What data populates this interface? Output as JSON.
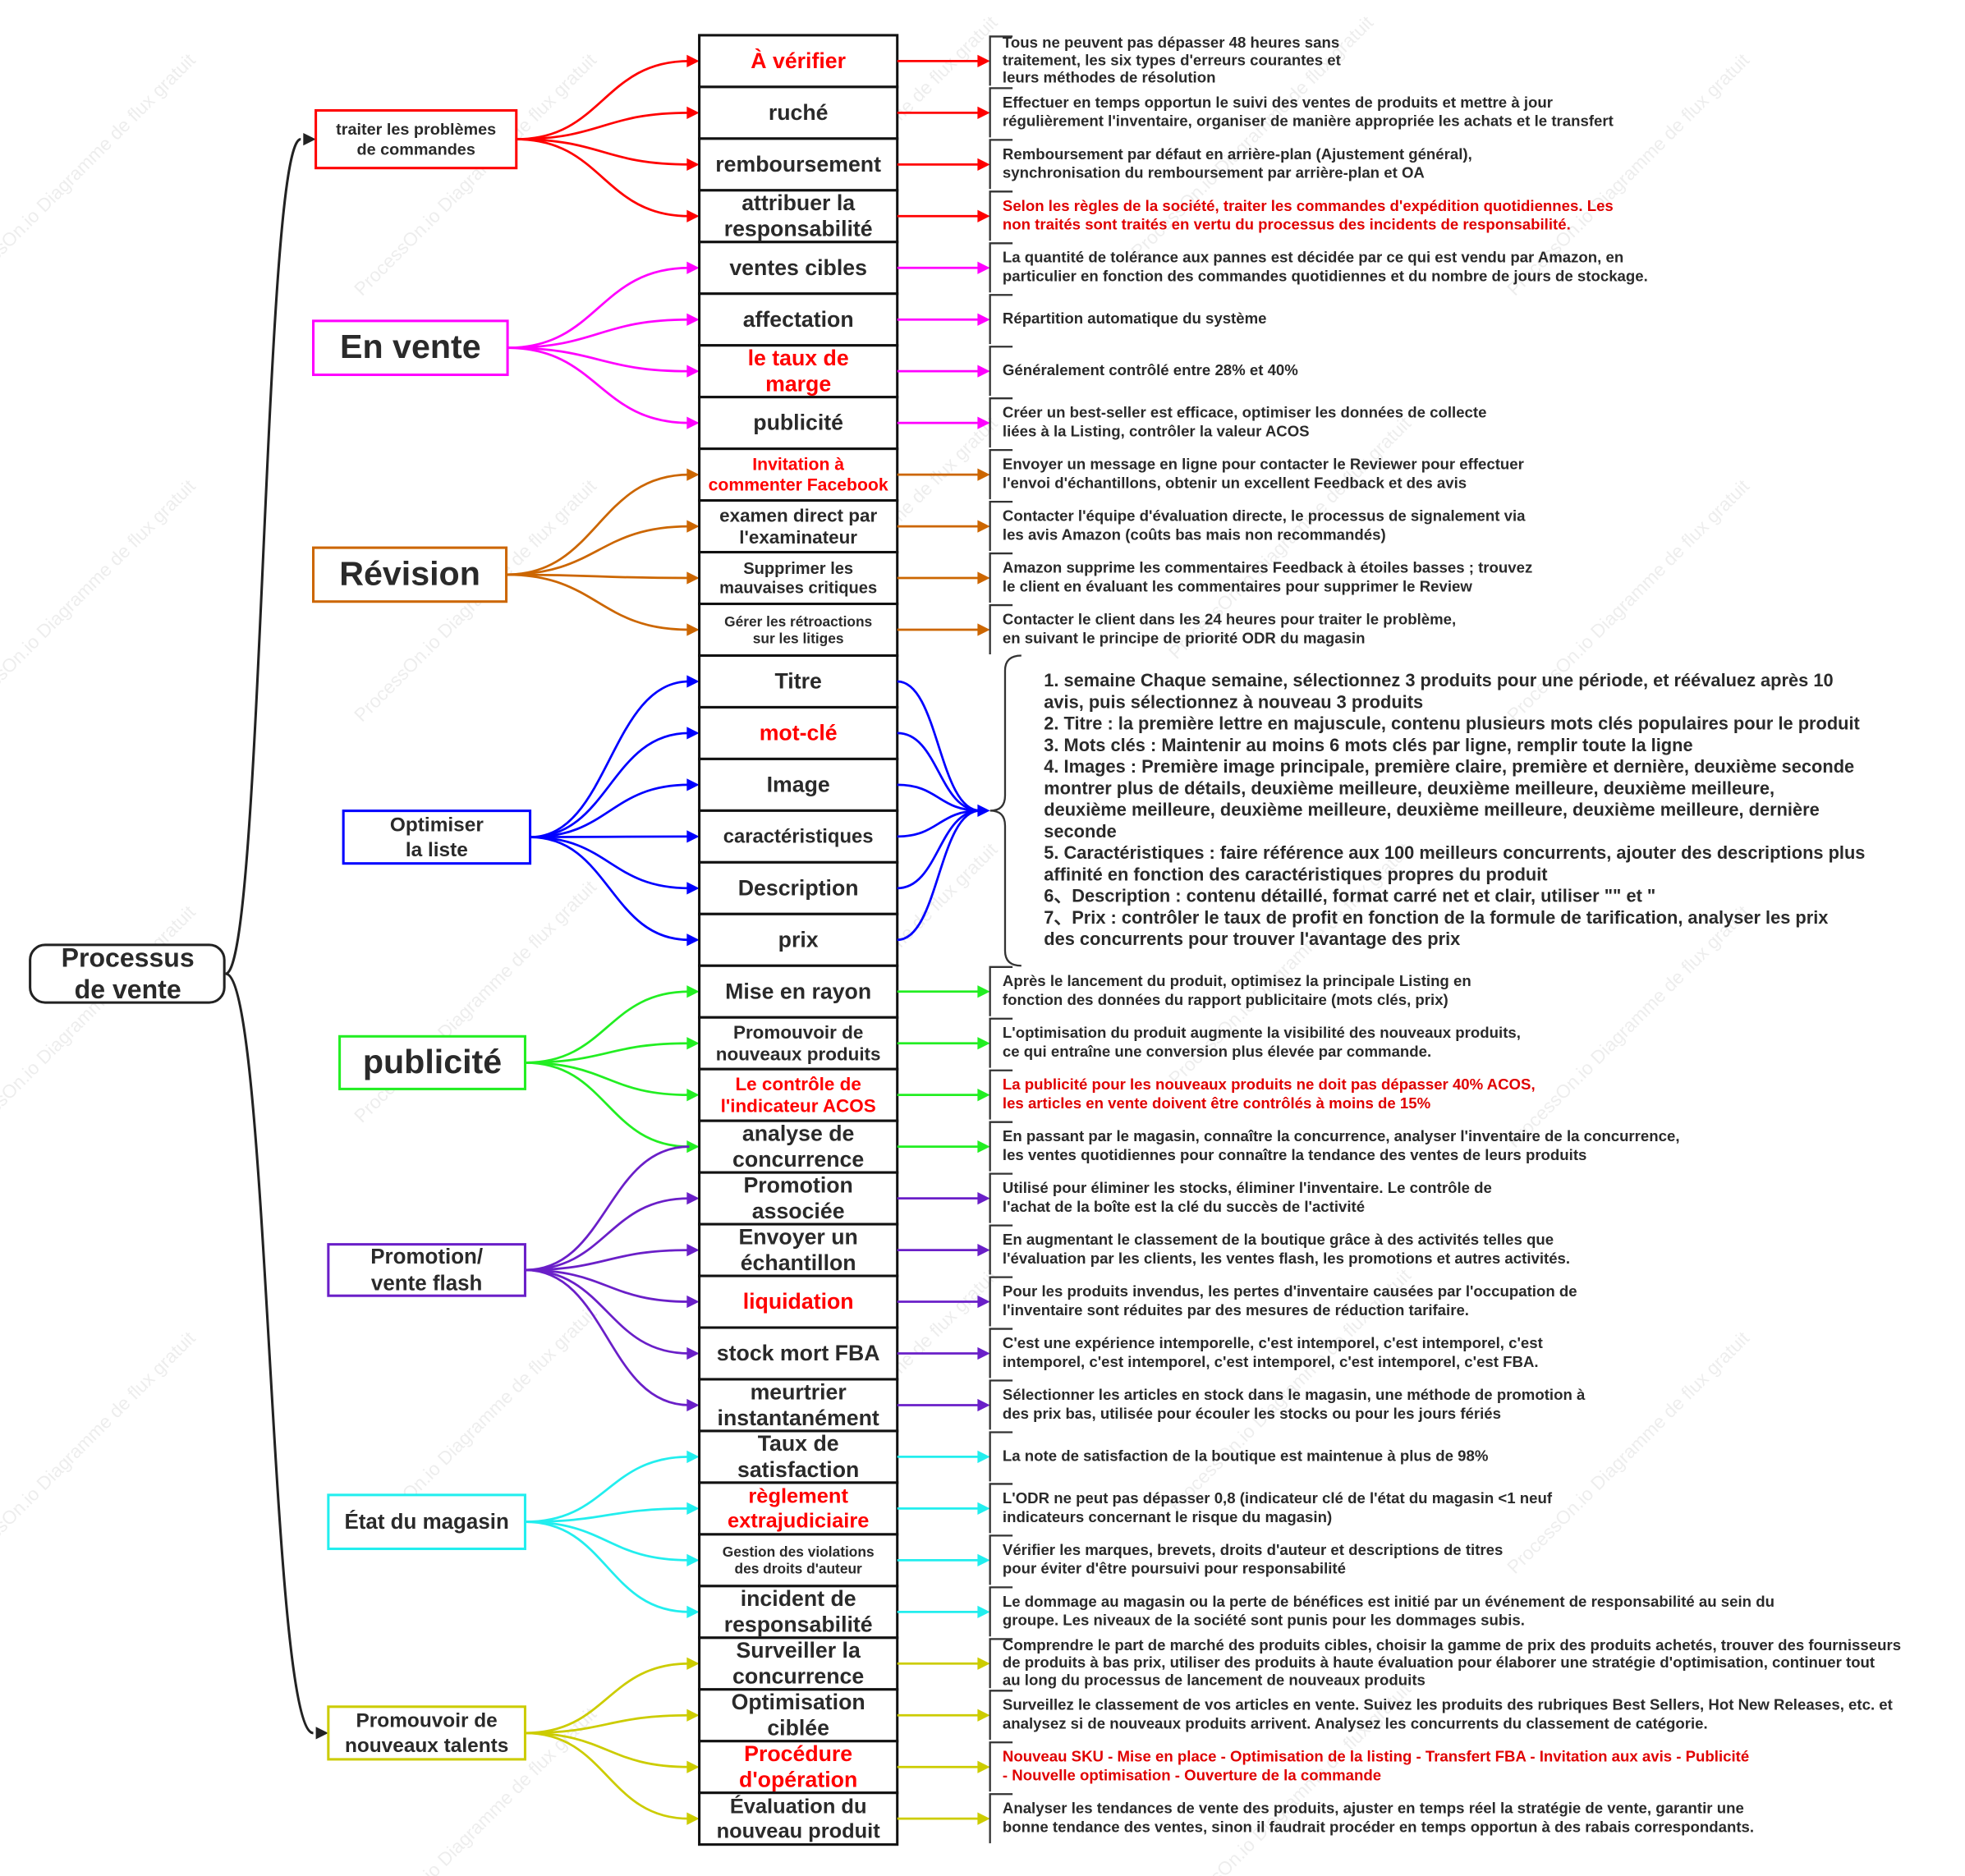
{
  "watermark": "ProcessOn.io Diagramme de flux gratuit",
  "root": {
    "label": [
      "Processus",
      "de vente"
    ]
  },
  "groups": [
    {
      "label": [
        "traiter les problèmes",
        "de commandes"
      ],
      "color": "#ff0000",
      "items": [
        {
          "label": [
            "À vérifier"
          ],
          "color": "#ff0000",
          "desc": [
            "Tous ne peuvent pas dépasser 48 heures sans",
            "traitement, les six types d'erreurs courantes et",
            "leurs méthodes de résolution"
          ]
        },
        {
          "label": [
            "ruché"
          ],
          "desc": [
            "Effectuer en temps opportun le suivi des ventes de produits et mettre à jour",
            "régulièrement l'inventaire, organiser de manière appropriée les achats et le transfert"
          ]
        },
        {
          "label": [
            "remboursement"
          ],
          "desc": [
            "Remboursement par défaut en arrière-plan (Ajustement général),",
            "synchronisation du remboursement par arrière-plan et OA"
          ]
        },
        {
          "label": [
            "attribuer la",
            "responsabilité"
          ],
          "desc": [
            "Selon les règles de la société, traiter les commandes d'expédition quotidiennes. Les",
            "non traités sont traités en vertu du processus des incidents de responsabilité."
          ],
          "desc_color": "#e00000"
        }
      ]
    },
    {
      "label": [
        "En vente"
      ],
      "color": "#ff00ff",
      "items": [
        {
          "label": [
            "ventes cibles"
          ],
          "desc": [
            "La quantité de tolérance aux pannes est décidée par ce qui est vendu par Amazon, en",
            "particulier en fonction des commandes quotidiennes et du nombre de jours de stockage."
          ]
        },
        {
          "label": [
            "affectation"
          ],
          "desc": [
            "Répartition automatique du système"
          ]
        },
        {
          "label": [
            "le taux de",
            "marge"
          ],
          "color": "#ff0000",
          "desc": [
            "Généralement contrôlé entre 28% et 40%"
          ]
        },
        {
          "label": [
            "publicité"
          ],
          "desc": [
            "Créer un best-seller est efficace, optimiser les données de collecte",
            "liées à la Listing, contrôler la valeur ACOS"
          ]
        }
      ]
    },
    {
      "label": [
        "Révision"
      ],
      "color": "#cc6600",
      "items": [
        {
          "label": [
            "Invitation à",
            "commenter Facebook"
          ],
          "color": "#ff0000",
          "desc": [
            "Envoyer un message en ligne pour contacter le Reviewer pour effectuer",
            "l'envoi d'échantillons, obtenir un excellent Feedback et des avis"
          ]
        },
        {
          "label": [
            "examen direct par",
            "l'examinateur"
          ],
          "desc": [
            "Contacter l'équipe d'évaluation directe, le processus de signalement via",
            "les avis Amazon (coûts bas mais non recommandés)"
          ]
        },
        {
          "label": [
            "Supprimer les",
            "mauvaises critiques"
          ],
          "desc": [
            "Amazon supprime les commentaires Feedback à étoiles basses ; trouvez",
            "le client en évaluant les commentaires pour supprimer le Review"
          ]
        },
        {
          "label": [
            "Gérer les rétroactions",
            "sur les litiges"
          ],
          "desc": [
            "Contacter le client dans les 24 heures pour traiter le problème,",
            "en suivant le principe de priorité ODR du magasin"
          ]
        }
      ]
    },
    {
      "label": [
        "Optimiser",
        "la liste"
      ],
      "color": "#0000ff",
      "items": [
        {
          "label": [
            "Titre"
          ]
        },
        {
          "label": [
            "mot-clé"
          ],
          "color": "#ff0000"
        },
        {
          "label": [
            "Image"
          ]
        },
        {
          "label": [
            "caractéristiques"
          ]
        },
        {
          "label": [
            "Description"
          ]
        },
        {
          "label": [
            "prix"
          ]
        }
      ],
      "details": [
        "1. semaine Chaque semaine, sélectionnez 3 produits pour une période, et réévaluez après 10",
        "avis, puis sélectionnez à nouveau 3 produits",
        "2. Titre : la première lettre en majuscule, contenu plusieurs mots clés populaires pour le produit",
        "3. Mots clés : Maintenir au moins 6 mots clés par ligne, remplir toute la ligne",
        "4. Images : Première image principale, première claire, première et dernière, deuxième seconde",
        "montrer plus de détails, deuxième meilleure, deuxième meilleure, deuxième meilleure,",
        "deuxième meilleure, deuxième meilleure, deuxième meilleure, deuxième meilleure, dernière",
        "seconde",
        "5. Caractéristiques : faire référence aux 100 meilleurs concurrents, ajouter des descriptions plus",
        "affinité en fonction des caractéristiques propres du produit",
        "6、Description : contenu détaillé, format carré net et clair, utiliser \"\" et \"",
        "7、Prix : contrôler le taux de profit en fonction de la formule de tarification, analyser les prix",
        "des concurrents pour trouver l'avantage des prix"
      ]
    },
    {
      "label": [
        "publicité"
      ],
      "color": "#22ee22",
      "items": [
        {
          "label": [
            "Mise en rayon"
          ],
          "desc": [
            "Après le lancement du produit, optimisez la principale Listing en",
            "fonction des données du rapport publicitaire (mots clés, prix)"
          ]
        },
        {
          "label": [
            "Promouvoir de",
            "nouveaux produits"
          ],
          "desc": [
            "L'optimisation du produit augmente la visibilité des nouveaux produits,",
            "ce qui entraîne une conversion plus élevée par commande."
          ]
        },
        {
          "label": [
            "Le contrôle de",
            "l'indicateur ACOS"
          ],
          "color": "#ff0000",
          "desc": [
            "La publicité pour les nouveaux produits ne doit pas dépasser 40% ACOS,",
            "les articles en vente doivent être contrôlés à moins de 15%"
          ],
          "desc_color": "#e00000"
        },
        {
          "label": [
            "analyse de",
            "concurrence"
          ],
          "desc": [
            "En passant par le magasin, connaître la concurrence, analyser l'inventaire de la concurrence,",
            "les ventes quotidiennes pour connaître la tendance des ventes de leurs produits"
          ]
        }
      ]
    },
    {
      "label": [
        "Promotion/",
        "vente flash"
      ],
      "color": "#6a1fc8",
      "items": [
        {
          "label": [
            "Promotion",
            "associée"
          ],
          "desc": [
            "Utilisé pour éliminer les stocks, éliminer l'inventaire. Le contrôle de",
            "l'achat de la boîte est la clé du succès de l'activité"
          ]
        },
        {
          "label": [
            "Envoyer un",
            "échantillon"
          ],
          "desc": [
            "En augmentant le classement de la boutique grâce à des activités telles que",
            "l'évaluation par les clients, les ventes flash, les promotions et autres activités."
          ]
        },
        {
          "label": [
            "liquidation"
          ],
          "color": "#ff0000",
          "desc": [
            "Pour les produits invendus, les pertes d'inventaire causées par l'occupation de",
            "l'inventaire sont réduites par des mesures de réduction tarifaire."
          ]
        },
        {
          "label": [
            "stock mort FBA"
          ],
          "desc": [
            "C'est une expérience intemporelle, c'est intemporel, c'est intemporel, c'est",
            "intemporel, c'est intemporel, c'est intemporel, c'est intemporel, c'est FBA."
          ]
        },
        {
          "label": [
            "meurtrier",
            "instantanément"
          ],
          "desc": [
            "Sélectionner les articles en stock dans le magasin, une méthode de promotion à",
            "des prix bas, utilisée pour écouler les stocks ou pour les jours fériés"
          ]
        }
      ]
    },
    {
      "label": [
        "État du magasin"
      ],
      "color": "#22eeee",
      "items": [
        {
          "label": [
            "Taux de",
            "satisfaction"
          ],
          "desc": [
            "La note de satisfaction de la boutique est maintenue à plus de 98%"
          ]
        },
        {
          "label": [
            "règlement",
            "extrajudiciaire"
          ],
          "color": "#ff0000",
          "desc": [
            "L'ODR ne peut pas dépasser 0,8 (indicateur clé de l'état du magasin <1 neuf",
            "indicateurs concernant le risque du magasin)"
          ]
        },
        {
          "label": [
            "Gestion des violations",
            "des droits d'auteur"
          ],
          "desc": [
            "Vérifier les marques, brevets, droits d'auteur et descriptions de titres",
            "pour éviter d'être poursuivi pour responsabilité"
          ]
        },
        {
          "label": [
            "incident de",
            "responsabilité"
          ],
          "desc": [
            "Le dommage au magasin ou la perte de bénéfices est initié par un événement de responsabilité au sein du",
            "groupe. Les niveaux de la société sont punis pour les dommages subis."
          ]
        }
      ]
    },
    {
      "label": [
        "Promouvoir de",
        "nouveaux talents"
      ],
      "color": "#cccc00",
      "items": [
        {
          "label": [
            "Surveiller la",
            "concurrence"
          ],
          "desc": [
            "Comprendre le part de marché des produits cibles, choisir la gamme de prix des produits achetés, trouver des fournisseurs",
            "de produits à bas prix, utiliser des produits à haute évaluation pour élaborer une stratégie d'optimisation, continuer tout",
            "au long du processus de lancement de nouveaux produits"
          ]
        },
        {
          "label": [
            "Optimisation",
            "ciblée"
          ],
          "desc": [
            "Surveillez le classement de vos articles en vente. Suivez les produits des rubriques Best Sellers, Hot New Releases, etc. et",
            "analysez si de nouveaux produits arrivent. Analysez les concurrents du classement de catégorie."
          ]
        },
        {
          "label": [
            "Procédure",
            "d'opération"
          ],
          "color": "#ff0000",
          "desc": [
            "Nouveau SKU - Mise en place - Optimisation de la listing - Transfert FBA - Invitation aux avis - Publicité",
            "- Nouvelle optimisation - Ouverture de la commande"
          ],
          "desc_color": "#e00000"
        },
        {
          "label": [
            "Évaluation du",
            "nouveau produit"
          ],
          "desc": [
            "Analyser les tendances de vente des produits, ajuster en temps réel la stratégie de vente, garantir une",
            "bonne tendance des ventes, sinon il faudrait procéder en temps opportun à des rabais correspondants."
          ]
        }
      ]
    }
  ]
}
